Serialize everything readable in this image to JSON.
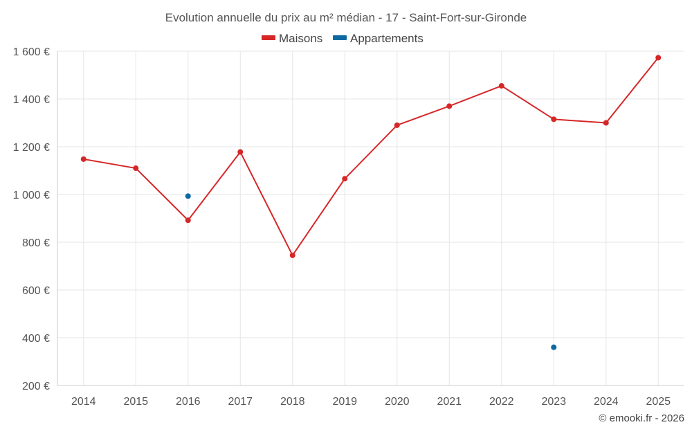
{
  "chart_data": {
    "type": "line",
    "title": "Evolution annuelle du prix au m² médian - 17 - Saint-Fort-sur-Gironde",
    "categories": [
      "2014",
      "2015",
      "2016",
      "2017",
      "2018",
      "2019",
      "2020",
      "2021",
      "2022",
      "2023",
      "2024",
      "2025"
    ],
    "series": [
      {
        "name": "Maisons",
        "color": "#d62728",
        "values": [
          1148,
          1110,
          892,
          1178,
          745,
          1066,
          1290,
          1370,
          1455,
          1315,
          1300,
          1573
        ]
      },
      {
        "name": "Appartements",
        "color": "#0b6aa2",
        "values": [
          null,
          null,
          993,
          null,
          null,
          null,
          null,
          null,
          null,
          360,
          null,
          null
        ]
      }
    ],
    "xlabel": "",
    "ylabel": "",
    "ylim": [
      200,
      1600
    ],
    "yticks": [
      200,
      400,
      600,
      800,
      1000,
      1200,
      1400,
      1600
    ],
    "ytick_labels": [
      "200 €",
      "400 €",
      "600 €",
      "800 €",
      "1 000 €",
      "1 200 €",
      "1 400 €",
      "1 600 €"
    ],
    "grid": true,
    "legend_position": "top-center"
  },
  "footer": {
    "credit": "© emooki.fr - 2026"
  }
}
